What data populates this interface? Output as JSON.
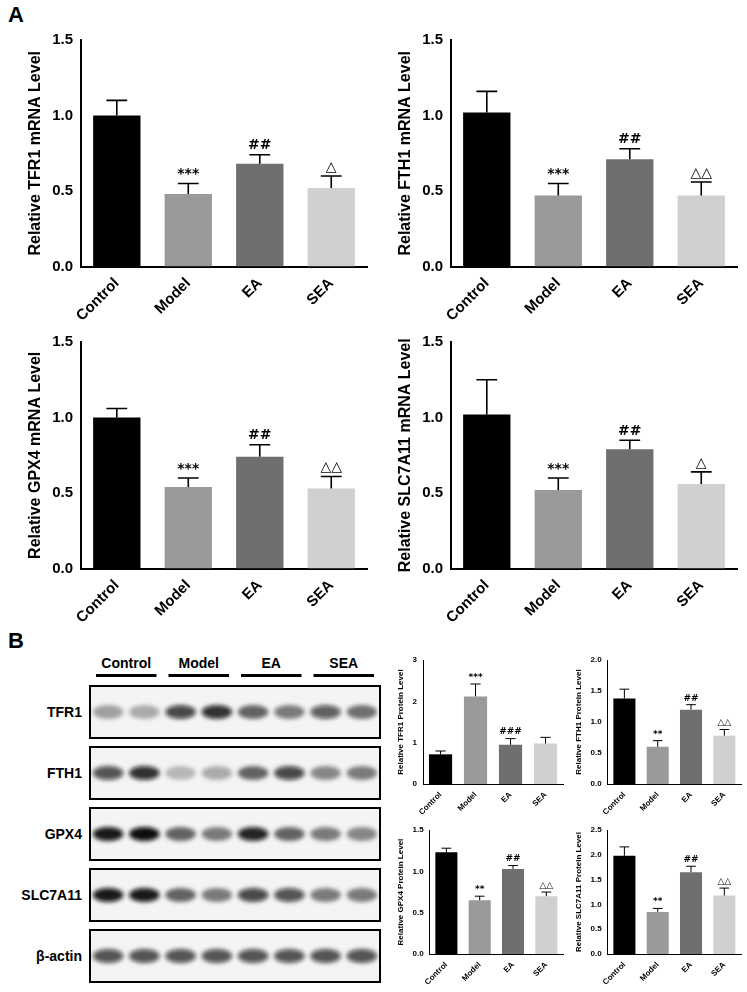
{
  "panel_labels": [
    "A",
    "B"
  ],
  "blot": {
    "groups": [
      "Control",
      "Model",
      "EA",
      "SEA"
    ],
    "rows": [
      {
        "protein": "TFR1",
        "bands": [
          0.35,
          0.3,
          0.75,
          0.85,
          0.6,
          0.5,
          0.65,
          0.55
        ]
      },
      {
        "protein": "FTH1",
        "bands": [
          0.7,
          0.85,
          0.25,
          0.3,
          0.6,
          0.75,
          0.45,
          0.5
        ]
      },
      {
        "protein": "GPX4",
        "bands": [
          0.95,
          1.0,
          0.6,
          0.5,
          0.9,
          0.6,
          0.5,
          0.45
        ]
      },
      {
        "protein": "SLC7A11",
        "bands": [
          0.95,
          0.95,
          0.6,
          0.5,
          0.75,
          0.7,
          0.5,
          0.5
        ]
      },
      {
        "protein": "β-actin",
        "bands": [
          0.7,
          0.7,
          0.7,
          0.7,
          0.7,
          0.7,
          0.7,
          0.7
        ]
      }
    ]
  },
  "chart_data": [
    {
      "type": "bar",
      "ylabel": "Relative TFR1 mRNA Level",
      "categories": [
        "Control",
        "Model",
        "EA",
        "SEA"
      ],
      "values": [
        1.0,
        0.48,
        0.68,
        0.52
      ],
      "errors": [
        0.1,
        0.07,
        0.06,
        0.08
      ],
      "annotations": [
        null,
        "***",
        "##",
        "△"
      ],
      "colors": [
        "#000000",
        "#9a9a9a",
        "#6f6f6f",
        "#d0d0d0"
      ],
      "ylim": [
        0,
        1.5
      ],
      "yticks": [
        {
          "value": 0,
          "label": "0.0"
        },
        {
          "value": 0.5,
          "label": "0.5"
        },
        {
          "value": 1,
          "label": "1.0"
        },
        {
          "value": 1.5,
          "label": "1.5"
        }
      ],
      "grid": false
    },
    {
      "type": "bar",
      "ylabel": "Relative FTH1 mRNA Level",
      "categories": [
        "Control",
        "Model",
        "EA",
        "SEA"
      ],
      "values": [
        1.02,
        0.47,
        0.71,
        0.47
      ],
      "errors": [
        0.14,
        0.08,
        0.07,
        0.09
      ],
      "annotations": [
        null,
        "***",
        "##",
        "△△"
      ],
      "colors": [
        "#000000",
        "#9a9a9a",
        "#6f6f6f",
        "#d0d0d0"
      ],
      "ylim": [
        0,
        1.5
      ],
      "yticks": [
        {
          "value": 0,
          "label": "0.0"
        },
        {
          "value": 0.5,
          "label": "0.5"
        },
        {
          "value": 1,
          "label": "1.0"
        },
        {
          "value": 1.5,
          "label": "1.5"
        }
      ],
      "grid": false
    },
    {
      "type": "bar",
      "ylabel": "Relative GPX4 mRNA Level",
      "categories": [
        "Control",
        "Model",
        "EA",
        "SEA"
      ],
      "values": [
        1.0,
        0.54,
        0.74,
        0.53
      ],
      "errors": [
        0.06,
        0.06,
        0.08,
        0.08
      ],
      "annotations": [
        null,
        "***",
        "##",
        "△△"
      ],
      "colors": [
        "#000000",
        "#9a9a9a",
        "#6f6f6f",
        "#d0d0d0"
      ],
      "ylim": [
        0,
        1.5
      ],
      "yticks": [
        {
          "value": 0,
          "label": "0.0"
        },
        {
          "value": 0.5,
          "label": "0.5"
        },
        {
          "value": 1,
          "label": "1.0"
        },
        {
          "value": 1.5,
          "label": "1.5"
        }
      ],
      "grid": false
    },
    {
      "type": "bar",
      "ylabel": "Relative SLC7A11 mRNA Level",
      "categories": [
        "Control",
        "Model",
        "EA",
        "SEA"
      ],
      "values": [
        1.02,
        0.52,
        0.79,
        0.56
      ],
      "errors": [
        0.23,
        0.08,
        0.06,
        0.08
      ],
      "annotations": [
        null,
        "***",
        "##",
        "△"
      ],
      "colors": [
        "#000000",
        "#9a9a9a",
        "#6f6f6f",
        "#d0d0d0"
      ],
      "ylim": [
        0,
        1.5
      ],
      "yticks": [
        {
          "value": 0,
          "label": "0.0"
        },
        {
          "value": 0.5,
          "label": "0.5"
        },
        {
          "value": 1,
          "label": "1.0"
        },
        {
          "value": 1.5,
          "label": "1.5"
        }
      ],
      "grid": false
    },
    {
      "type": "bar",
      "ylabel": "Relative TFR1 Protein Level",
      "categories": [
        "Control",
        "Model",
        "EA",
        "SEA"
      ],
      "values": [
        0.72,
        2.12,
        0.95,
        0.98
      ],
      "errors": [
        0.08,
        0.3,
        0.15,
        0.15
      ],
      "annotations": [
        null,
        "***",
        "###",
        null
      ],
      "colors": [
        "#000000",
        "#9a9a9a",
        "#6f6f6f",
        "#d0d0d0"
      ],
      "ylim": [
        0,
        3
      ],
      "yticks": [
        0,
        1,
        2,
        3
      ],
      "grid": false
    },
    {
      "type": "bar",
      "ylabel": "Relative FTH1 Protein Level",
      "categories": [
        "Control",
        "Model",
        "EA",
        "SEA"
      ],
      "values": [
        1.38,
        0.6,
        1.2,
        0.78
      ],
      "errors": [
        0.15,
        0.1,
        0.08,
        0.1
      ],
      "annotations": [
        null,
        "**",
        "##",
        "△△"
      ],
      "colors": [
        "#000000",
        "#9a9a9a",
        "#6f6f6f",
        "#d0d0d0"
      ],
      "ylim": [
        0,
        2
      ],
      "yticks": [
        {
          "value": 0,
          "label": "0.0"
        },
        {
          "value": 0.5,
          "label": "0.5"
        },
        {
          "value": 1,
          "label": "1.0"
        },
        {
          "value": 1.5,
          "label": "1.5"
        },
        {
          "value": 2,
          "label": "2.0"
        }
      ],
      "grid": false
    },
    {
      "type": "bar",
      "ylabel": "Relative GPX4 Protein Level",
      "categories": [
        "Control",
        "Model",
        "EA",
        "SEA"
      ],
      "values": [
        1.23,
        0.65,
        1.03,
        0.7
      ],
      "errors": [
        0.05,
        0.05,
        0.04,
        0.05
      ],
      "annotations": [
        null,
        "**",
        "##",
        "△△"
      ],
      "colors": [
        "#000000",
        "#9a9a9a",
        "#6f6f6f",
        "#d0d0d0"
      ],
      "ylim": [
        0,
        1.5
      ],
      "yticks": [
        {
          "value": 0,
          "label": "0.0"
        },
        {
          "value": 0.5,
          "label": "0.5"
        },
        {
          "value": 1,
          "label": "1.0"
        },
        {
          "value": 1.5,
          "label": "1.5"
        }
      ],
      "grid": false
    },
    {
      "type": "bar",
      "ylabel": "Relative SLC7A11 Protein Level",
      "categories": [
        "Control",
        "Model",
        "EA",
        "SEA"
      ],
      "values": [
        1.98,
        0.85,
        1.65,
        1.18
      ],
      "errors": [
        0.18,
        0.07,
        0.12,
        0.15
      ],
      "annotations": [
        null,
        "**",
        "##",
        "△△"
      ],
      "colors": [
        "#000000",
        "#9a9a9a",
        "#6f6f6f",
        "#d0d0d0"
      ],
      "ylim": [
        0,
        2.5
      ],
      "yticks": [
        {
          "value": 0,
          "label": "0.0"
        },
        {
          "value": 0.5,
          "label": "0.5"
        },
        {
          "value": 1,
          "label": "1.0"
        },
        {
          "value": 1.5,
          "label": "1.5"
        },
        {
          "value": 2,
          "label": "2.0"
        },
        {
          "value": 2.5,
          "label": "2.5"
        }
      ],
      "grid": false
    }
  ]
}
